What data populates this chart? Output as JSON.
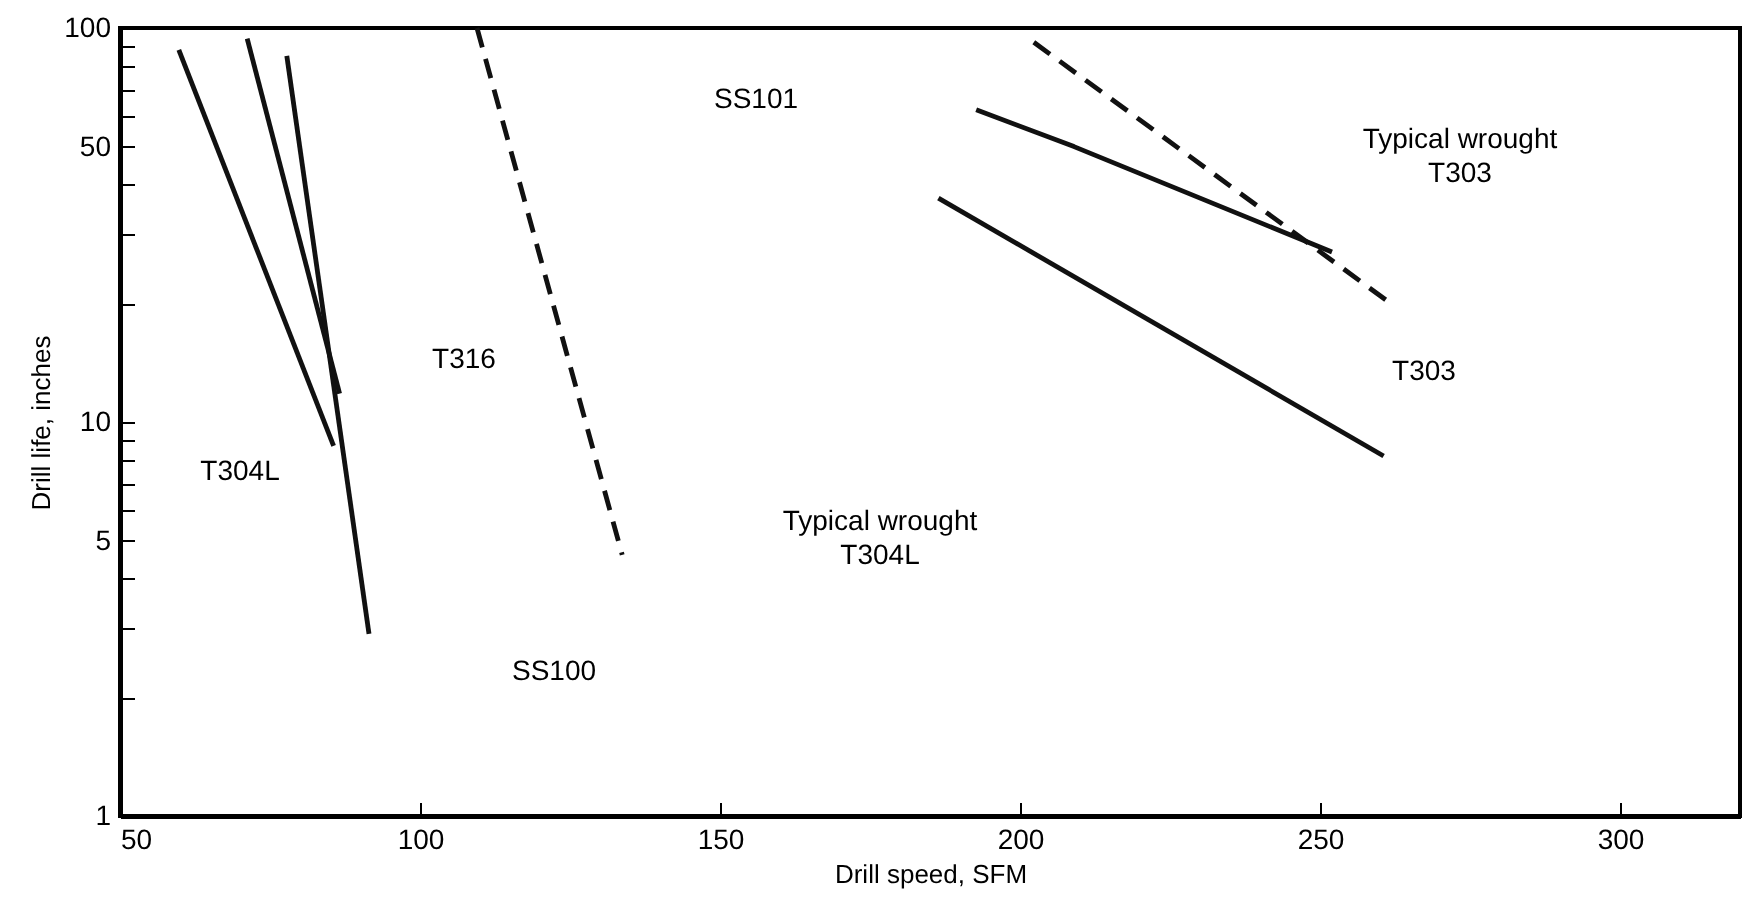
{
  "chart_data": {
    "type": "line",
    "xlabel": "Drill speed, SFM",
    "ylabel": "Drill life, inches",
    "log": "y",
    "xlim": [
      50,
      320
    ],
    "ylim": [
      1,
      100
    ],
    "xticks": [
      50,
      100,
      150,
      200,
      250,
      300
    ],
    "yticks": [
      1,
      {
        "value": 2,
        "label": null
      },
      {
        "value": 3,
        "label": null
      },
      {
        "value": 4,
        "label": null
      },
      5,
      {
        "value": 6,
        "label": null
      },
      {
        "value": 7,
        "label": null
      },
      {
        "value": 8,
        "label": null
      },
      {
        "value": 9,
        "label": null
      },
      10,
      {
        "value": 20,
        "label": null
      },
      {
        "value": 30,
        "label": null
      },
      {
        "value": 40,
        "label": null
      },
      50,
      {
        "value": 60,
        "label": null
      },
      {
        "value": 70,
        "label": null
      },
      {
        "value": 80,
        "label": null
      },
      {
        "value": 90,
        "label": null
      },
      100
    ],
    "series": [
      {
        "color": "#111111",
        "line_style": "solid",
        "x": [
          59.8,
          85.6
        ],
        "values": [
          88,
          8.7
        ]
      },
      {
        "color": "#111111",
        "line_style": "solid",
        "x": [
          71.2,
          86.6
        ],
        "values": [
          94,
          11.8
        ]
      },
      {
        "color": "#111111",
        "line_style": "solid",
        "x": [
          77.8,
          91.5
        ],
        "values": [
          85,
          2.9
        ]
      },
      {
        "color": "#111111",
        "line_style": "dashed",
        "x": [
          109.5,
          133.7
        ],
        "values": [
          100,
          4.6
        ]
      },
      {
        "color": "#111111",
        "line_style": "solid",
        "x": [
          192.7,
          209,
          252
        ],
        "values": [
          62,
          50,
          27
        ]
      },
      {
        "color": "#111111",
        "line_style": "dashed",
        "x": [
          202.3,
          261
        ],
        "values": [
          92,
          20.4
        ]
      },
      {
        "color": "#111111",
        "line_style": "solid",
        "x": [
          186.4,
          260.6
        ],
        "values": [
          37,
          8.2
        ]
      }
    ],
    "annotations": [
      "T304L",
      "T316",
      "SS100",
      "Typical wrought\nT304L",
      "SS101",
      "Typical wrought\nT303",
      "T303"
    ]
  }
}
